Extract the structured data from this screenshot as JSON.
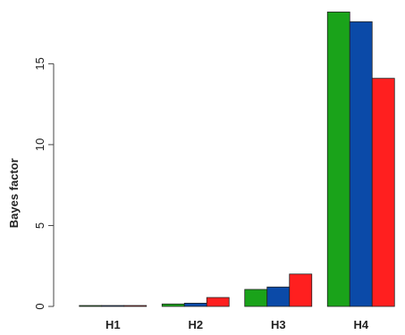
{
  "chart_data": {
    "type": "bar",
    "title": "",
    "xlabel": "",
    "ylabel": "Bayes factor",
    "categories": [
      "H1",
      "H2",
      "H3",
      "H4"
    ],
    "series": [
      {
        "color": "#1aa31a",
        "values": [
          0.02,
          0.15,
          1.05,
          18.2
        ]
      },
      {
        "color": "#0b4aa8",
        "values": [
          0.02,
          0.2,
          1.2,
          17.6
        ]
      },
      {
        "color": "#ff1f1f",
        "values": [
          0.04,
          0.55,
          2.0,
          14.1
        ]
      }
    ],
    "ylim": [
      0,
      18.5
    ],
    "yticks": [
      "0",
      "5",
      "10",
      "15"
    ],
    "grid": false,
    "legend": "none"
  }
}
